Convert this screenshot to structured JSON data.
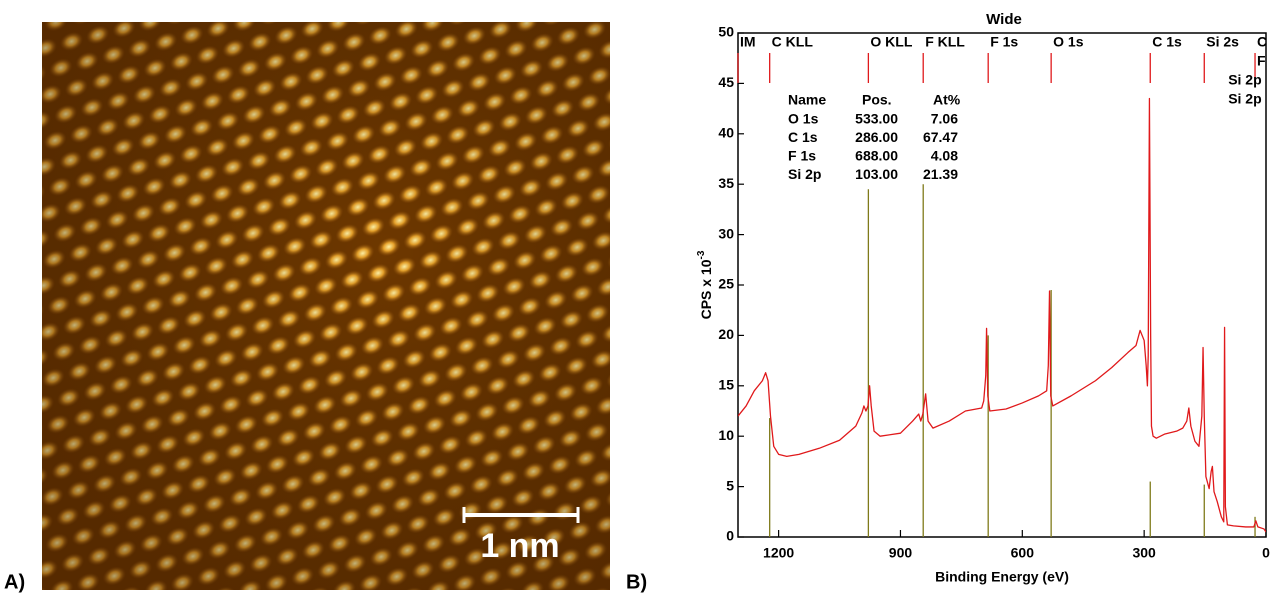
{
  "image_panel": {
    "label": "A)",
    "scale_bar_label": "1 nm"
  },
  "chart_label": "B)",
  "chart_data": {
    "type": "line",
    "title": "Wide",
    "xlabel": "Binding Energy (eV)",
    "ylabel": "CPS x 10",
    "ylabel_superscript": "-3",
    "xlim": [
      1300,
      0
    ],
    "ylim": [
      0,
      50
    ],
    "xticks": [
      1200,
      900,
      600,
      300,
      0
    ],
    "yticks": [
      0,
      5,
      10,
      15,
      20,
      25,
      30,
      35,
      40,
      45,
      50
    ],
    "color": "#e0191b",
    "x": [
      1300,
      1280,
      1260,
      1240,
      1232,
      1226,
      1220,
      1212,
      1200,
      1180,
      1150,
      1100,
      1050,
      1010,
      995,
      990,
      985,
      980,
      976,
      972,
      965,
      950,
      900,
      870,
      855,
      850,
      845,
      838,
      832,
      820,
      780,
      740,
      700,
      695,
      690,
      688,
      685,
      680,
      640,
      600,
      560,
      540,
      536,
      533,
      530,
      525,
      480,
      420,
      380,
      340,
      320,
      310,
      300,
      295,
      292,
      290,
      287,
      284,
      282,
      278,
      270,
      250,
      220,
      205,
      195,
      190,
      185,
      175,
      165,
      158,
      155,
      152,
      148,
      140,
      135,
      132,
      128,
      120,
      110,
      104,
      102,
      100,
      95,
      80,
      50,
      30,
      25,
      20,
      5,
      0
    ],
    "values": [
      12,
      13,
      14.5,
      15.5,
      16.3,
      15.5,
      12,
      9,
      8.2,
      8,
      8.2,
      8.8,
      9.6,
      11,
      12.3,
      13,
      12.5,
      13,
      15,
      13,
      10.5,
      10,
      10.3,
      11.5,
      12.2,
      11.5,
      12.2,
      14.2,
      11.5,
      10.8,
      11.5,
      12.5,
      12.8,
      13.5,
      16,
      20.7,
      14,
      12.5,
      12.7,
      13.3,
      14,
      14.5,
      17,
      24.4,
      14,
      13,
      14,
      15.5,
      16.8,
      18.3,
      19,
      20.5,
      19.5,
      17,
      15,
      18,
      43.5,
      20,
      11,
      10,
      9.8,
      10.2,
      10.5,
      10.8,
      11.5,
      12.8,
      11,
      9.5,
      9,
      12,
      18.8,
      12,
      6,
      4.8,
      6.5,
      7,
      4.5,
      3.5,
      2,
      1.5,
      20.8,
      3,
      1.2,
      1.1,
      1,
      1,
      1.6,
      1,
      0.8,
      0.5
    ],
    "peak_marker_color": "#e0191b",
    "peak_labels": [
      {
        "label": "IM",
        "position": 1300
      },
      {
        "label": "C KLL",
        "position": 1222
      },
      {
        "label": "O KLL",
        "position": 979
      },
      {
        "label": "F KLL",
        "position": 844
      },
      {
        "label": "F 1s",
        "position": 684
      },
      {
        "label": "O 1s",
        "position": 529
      },
      {
        "label": "C 1s",
        "position": 285
      },
      {
        "label": "Si 2s",
        "position": 152
      },
      {
        "label": "C",
        "position": 27
      },
      {
        "label": "F",
        "position": 27
      },
      {
        "label": "Si 2p",
        "position": 98
      },
      {
        "label": "Si 2p",
        "position": 98
      }
    ],
    "reference_line_color": "#7f7a1a",
    "reference_lines": [
      {
        "position": 1222,
        "height": 11.8
      },
      {
        "position": 979,
        "height": 34.5
      },
      {
        "position": 844,
        "height": 35
      },
      {
        "position": 684,
        "height": 20
      },
      {
        "position": 529,
        "height": 24.5
      },
      {
        "position": 285,
        "height": 5.5
      },
      {
        "position": 152,
        "height": 5.2
      },
      {
        "position": 27,
        "height": 2
      }
    ],
    "annotation_table": {
      "columns": [
        "Name",
        "Pos.",
        "At%"
      ],
      "rows": [
        [
          "O 1s",
          "533.00",
          "7.06"
        ],
        [
          "C 1s",
          "286.00",
          "67.47"
        ],
        [
          "F 1s",
          "688.00",
          "4.08"
        ],
        [
          "Si 2p",
          "103.00",
          "21.39"
        ]
      ]
    }
  }
}
